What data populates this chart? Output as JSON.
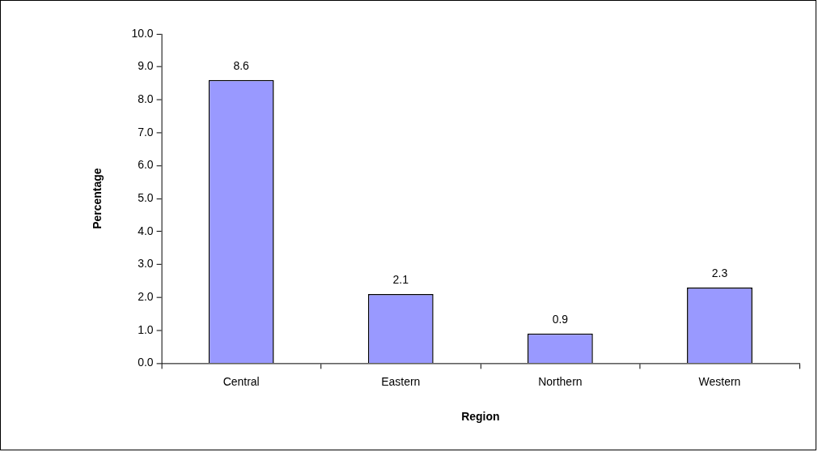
{
  "chart_data": {
    "type": "bar",
    "xlabel": "Region",
    "ylabel": "Percentage",
    "categories": [
      "Central",
      "Eastern",
      "Northern",
      "Western"
    ],
    "values": [
      8.6,
      2.1,
      0.9,
      2.3
    ],
    "color": "#9999ff",
    "ylim": [
      0,
      10
    ],
    "yticks": [
      {
        "value": 0,
        "label": "0.0"
      },
      {
        "value": 1,
        "label": "1.0"
      },
      {
        "value": 2,
        "label": "2.0"
      },
      {
        "value": 3,
        "label": "3.0"
      },
      {
        "value": 4,
        "label": "4.0"
      },
      {
        "value": 5,
        "label": "5.0"
      },
      {
        "value": 6,
        "label": "6.0"
      },
      {
        "value": 7,
        "label": "7.0"
      },
      {
        "value": 8,
        "label": "8.0"
      },
      {
        "value": 9,
        "label": "9.0"
      },
      {
        "value": 10,
        "label": "10.0"
      }
    ],
    "data_labels": true
  }
}
